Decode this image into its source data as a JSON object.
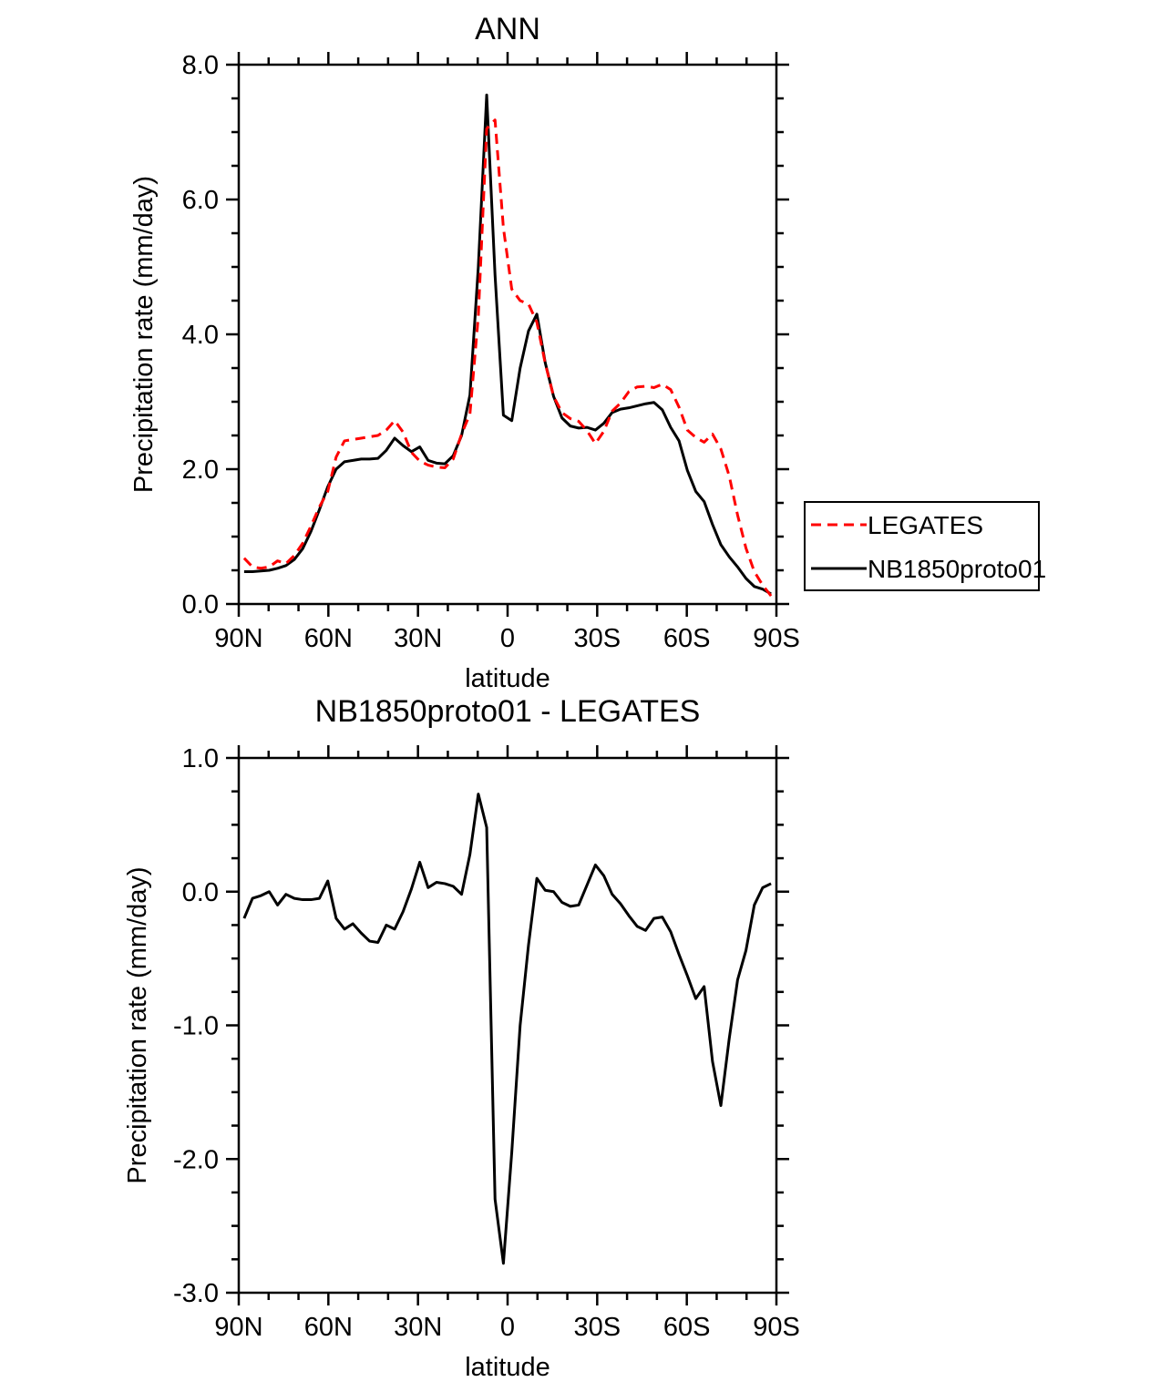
{
  "figure": {
    "background": "#ffffff",
    "axis_color": "#000000",
    "text_color": "#000000"
  },
  "chart_data": [
    {
      "type": "line",
      "title": "ANN",
      "xlabel": "latitude",
      "ylabel": "Precipitation rate (mm/day)",
      "ylim": [
        0.0,
        8.0
      ],
      "yticks": {
        "values": [
          0,
          2,
          4,
          6,
          8
        ],
        "labels": [
          "0.0",
          "2.0",
          "4.0",
          "6.0",
          "8.0"
        ],
        "minor_step": 0.5
      },
      "xlim": [
        90,
        -90
      ],
      "xticks": {
        "values": [
          90,
          60,
          30,
          0,
          -30,
          -60,
          -90
        ],
        "labels": [
          "90N",
          "60N",
          "30N",
          "0",
          "30S",
          "60S",
          "90S"
        ],
        "minor_step": 10
      },
      "grid": false,
      "x": [
        88.2,
        85.4,
        82.6,
        79.8,
        77.0,
        74.2,
        71.4,
        68.6,
        65.8,
        63.0,
        60.2,
        57.4,
        54.6,
        51.8,
        49.0,
        46.2,
        43.4,
        40.6,
        37.8,
        35.0,
        32.2,
        29.4,
        26.6,
        23.8,
        21.0,
        18.2,
        15.4,
        12.6,
        9.8,
        7.0,
        4.2,
        1.4,
        -1.4,
        -4.2,
        -7.0,
        -9.8,
        -12.6,
        -15.4,
        -18.2,
        -21.0,
        -23.8,
        -26.6,
        -29.4,
        -32.2,
        -35.0,
        -37.8,
        -40.6,
        -43.4,
        -46.2,
        -49.0,
        -51.8,
        -54.6,
        -57.4,
        -60.2,
        -63.0,
        -65.8,
        -68.6,
        -71.4,
        -74.2,
        -77.0,
        -79.8,
        -82.6,
        -85.4,
        -88.2
      ],
      "series": [
        {
          "name": "LEGATES",
          "color": "#ff0000",
          "dash": "11 7",
          "width": 3,
          "values": [
            0.68,
            0.55,
            0.53,
            0.55,
            0.64,
            0.6,
            0.72,
            0.9,
            1.16,
            1.44,
            1.67,
            2.18,
            2.42,
            2.44,
            2.46,
            2.48,
            2.5,
            2.58,
            2.72,
            2.55,
            2.25,
            2.12,
            2.06,
            2.03,
            2.02,
            2.15,
            2.52,
            2.82,
            4.27,
            7.05,
            7.18,
            5.58,
            4.67,
            4.5,
            4.45,
            4.18,
            3.57,
            3.08,
            2.84,
            2.75,
            2.71,
            2.57,
            2.38,
            2.56,
            2.86,
            2.98,
            3.15,
            3.22,
            3.23,
            3.21,
            3.26,
            3.18,
            2.92,
            2.58,
            2.47,
            2.4,
            2.52,
            2.3,
            1.9,
            1.32,
            0.83,
            0.48,
            0.28,
            0.12
          ]
        },
        {
          "name": "NB1850proto01",
          "color": "#000000",
          "dash": "",
          "width": 3,
          "values": [
            0.48,
            0.48,
            0.49,
            0.5,
            0.53,
            0.57,
            0.66,
            0.82,
            1.08,
            1.4,
            1.74,
            2.0,
            2.11,
            2.13,
            2.15,
            2.15,
            2.16,
            2.28,
            2.46,
            2.35,
            2.26,
            2.33,
            2.13,
            2.09,
            2.08,
            2.2,
            2.5,
            3.1,
            5.0,
            7.55,
            4.88,
            2.8,
            2.72,
            3.5,
            4.05,
            4.3,
            3.58,
            3.08,
            2.76,
            2.64,
            2.61,
            2.62,
            2.58,
            2.68,
            2.84,
            2.89,
            2.91,
            2.94,
            2.97,
            2.99,
            2.88,
            2.62,
            2.42,
            1.98,
            1.67,
            1.52,
            1.18,
            0.88,
            0.7,
            0.55,
            0.38,
            0.26,
            0.22,
            0.15
          ]
        }
      ],
      "legend": {
        "visible": true,
        "position": "outside-right",
        "entries": [
          "LEGATES",
          "NB1850proto01"
        ]
      }
    },
    {
      "type": "line",
      "title": "NB1850proto01 - LEGATES",
      "xlabel": "latitude",
      "ylabel": "Precipitation rate (mm/day)",
      "ylim": [
        -3.0,
        1.0
      ],
      "yticks": {
        "values": [
          1,
          0,
          -1,
          -2,
          -3
        ],
        "labels": [
          "1.0",
          "0.0",
          "-1.0",
          "-2.0",
          "-3.0"
        ],
        "minor_step": 0.25
      },
      "xlim": [
        90,
        -90
      ],
      "xticks": {
        "values": [
          90,
          60,
          30,
          0,
          -30,
          -60,
          -90
        ],
        "labels": [
          "90N",
          "60N",
          "30N",
          "0",
          "30S",
          "60S",
          "90S"
        ],
        "minor_step": 10
      },
      "grid": false,
      "x": [
        88.2,
        85.4,
        82.6,
        79.8,
        77.0,
        74.2,
        71.4,
        68.6,
        65.8,
        63.0,
        60.2,
        57.4,
        54.6,
        51.8,
        49.0,
        46.2,
        43.4,
        40.6,
        37.8,
        35.0,
        32.2,
        29.4,
        26.6,
        23.8,
        21.0,
        18.2,
        15.4,
        12.6,
        9.8,
        7.0,
        4.2,
        1.4,
        -1.4,
        -4.2,
        -7.0,
        -9.8,
        -12.6,
        -15.4,
        -18.2,
        -21.0,
        -23.8,
        -26.6,
        -29.4,
        -32.2,
        -35.0,
        -37.8,
        -40.6,
        -43.4,
        -46.2,
        -49.0,
        -51.8,
        -54.6,
        -57.4,
        -60.2,
        -63.0,
        -65.8,
        -68.6,
        -71.4,
        -74.2,
        -77.0,
        -79.8,
        -82.6,
        -85.4,
        -88.2
      ],
      "series": [
        {
          "name": "NB1850proto01 - LEGATES",
          "color": "#000000",
          "dash": "",
          "width": 3,
          "values": [
            -0.2,
            -0.05,
            -0.03,
            0.0,
            -0.1,
            -0.02,
            -0.05,
            -0.06,
            -0.06,
            -0.05,
            0.08,
            -0.2,
            -0.28,
            -0.24,
            -0.31,
            -0.37,
            -0.38,
            -0.25,
            -0.28,
            -0.15,
            0.02,
            0.22,
            0.03,
            0.07,
            0.06,
            0.04,
            -0.02,
            0.28,
            0.73,
            0.48,
            -2.3,
            -2.78,
            -1.95,
            -1.0,
            -0.4,
            0.1,
            0.01,
            0.0,
            -0.08,
            -0.11,
            -0.1,
            0.05,
            0.2,
            0.12,
            -0.02,
            -0.09,
            -0.18,
            -0.26,
            -0.29,
            -0.2,
            -0.19,
            -0.3,
            -0.47,
            -0.63,
            -0.8,
            -0.71,
            -1.27,
            -1.6,
            -1.1,
            -0.66,
            -0.44,
            -0.1,
            0.03,
            0.06
          ]
        }
      ],
      "legend": {
        "visible": false
      }
    }
  ]
}
